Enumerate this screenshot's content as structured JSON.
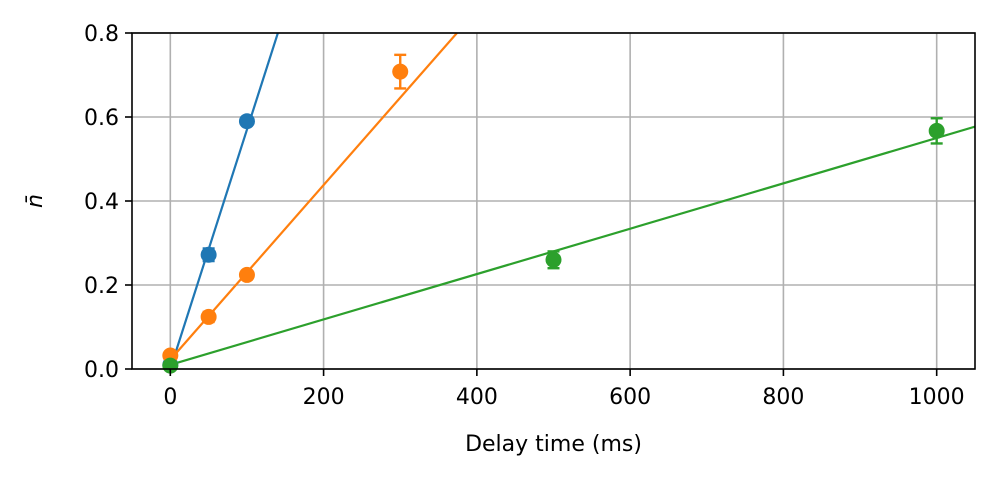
{
  "chart_data": {
    "type": "scatter",
    "xlabel": "Delay time (ms)",
    "ylabel": "n̄",
    "xlim": [
      -50,
      1050
    ],
    "ylim": [
      0,
      0.8
    ],
    "xticks": [
      0,
      200,
      400,
      600,
      800,
      1000
    ],
    "yticks": [
      0.0,
      0.2,
      0.4,
      0.6,
      0.8
    ],
    "xtick_labels": [
      "0",
      "200",
      "400",
      "600",
      "800",
      "1000"
    ],
    "ytick_labels": [
      "0.0",
      "0.2",
      "0.4",
      "0.6",
      "0.8"
    ],
    "grid": true,
    "series": [
      {
        "color": "#1f77b4",
        "points": [
          {
            "x": 0,
            "y": 0.01,
            "err": 0.005
          },
          {
            "x": 50,
            "y": 0.272,
            "err": 0.015
          },
          {
            "x": 100,
            "y": 0.59,
            "err": 0.01
          }
        ],
        "fit": {
          "slope": 0.0057,
          "intercept": 0.0
        }
      },
      {
        "color": "#ff7f0e",
        "points": [
          {
            "x": 0,
            "y": 0.032,
            "err": 0.005
          },
          {
            "x": 50,
            "y": 0.124,
            "err": 0.012
          },
          {
            "x": 100,
            "y": 0.224,
            "err": 0.01
          },
          {
            "x": 300,
            "y": 0.708,
            "err": 0.04
          }
        ],
        "fit": {
          "slope": 0.00208,
          "intercept": 0.022
        }
      },
      {
        "color": "#2ca02c",
        "points": [
          {
            "x": 0,
            "y": 0.008,
            "err": 0.004
          },
          {
            "x": 500,
            "y": 0.26,
            "err": 0.02
          },
          {
            "x": 1000,
            "y": 0.567,
            "err": 0.03
          }
        ],
        "fit": {
          "slope": 0.00054,
          "intercept": 0.01
        }
      }
    ]
  }
}
